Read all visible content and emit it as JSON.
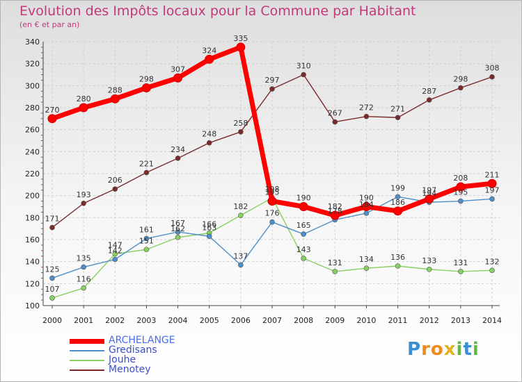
{
  "header": {
    "title": "Evolution des Impôts locaux pour la Commune par Habitant",
    "subtitle": "(en € et par an)"
  },
  "logo": {
    "text": "Proxiti",
    "letters": [
      "P",
      "r",
      "o",
      "x",
      "i",
      "t",
      "i"
    ],
    "colors": [
      "#3a8fd0",
      "#f08a1c",
      "#f08a1c",
      "#e0b21c",
      "#62b843",
      "#3a8fd0",
      "#62b843"
    ]
  },
  "chart_data": {
    "type": "line",
    "title": "Evolution des Impôts locaux pour la Commune par Habitant",
    "subtitle": "(en € et par an)",
    "xlabel": "",
    "ylabel": "",
    "x": [
      "2000",
      "2001",
      "2002",
      "2003",
      "2004",
      "2005",
      "2006",
      "2007",
      "2008",
      "2009",
      "2010",
      "2011",
      "2012",
      "2013",
      "2014"
    ],
    "ylim": [
      100,
      340
    ],
    "yticks": [
      100,
      120,
      140,
      160,
      180,
      200,
      220,
      240,
      260,
      280,
      300,
      320,
      340
    ],
    "yticks_label": [
      "100",
      "120",
      "140",
      "160",
      "180",
      "200",
      "220",
      "240",
      "260",
      "280",
      "300",
      "320",
      "340"
    ],
    "grid": true,
    "legend_position": "bottom-left",
    "series": [
      {
        "name": "ARCHELANGE",
        "color": "#ff0000",
        "values": [
          270,
          280,
          288,
          298,
          307,
          324,
          335,
          195,
          190,
          182,
          190,
          186,
          197,
          208,
          211
        ],
        "labels": [
          "270",
          "280",
          "288",
          "298",
          "307",
          "324",
          "335",
          "195",
          "190",
          "182",
          "190",
          "186",
          "197",
          "208",
          "211"
        ]
      },
      {
        "name": "Gredisans",
        "color": "#4f8fc8",
        "values": [
          125,
          135,
          142,
          161,
          167,
          163,
          137,
          176,
          165,
          178,
          184,
          199,
          194,
          195,
          197
        ],
        "labels": [
          "125",
          "135",
          "142",
          "161",
          "167",
          "163",
          "137",
          "176",
          "165",
          "178",
          "184",
          "199",
          "194",
          "195",
          "197"
        ]
      },
      {
        "name": "Jouhe",
        "color": "#88d060",
        "values": [
          107,
          116,
          147,
          151,
          162,
          166,
          182,
          198,
          143,
          131,
          134,
          136,
          133,
          131,
          132
        ],
        "labels": [
          "107",
          "116",
          "147",
          "151",
          "162",
          "166",
          "182",
          "198",
          "143",
          "131",
          "134",
          "136",
          "133",
          "131",
          "132"
        ]
      },
      {
        "name": "Menotey",
        "color": "#7a2a2a",
        "values": [
          171,
          193,
          206,
          221,
          234,
          248,
          258,
          297,
          310,
          267,
          272,
          271,
          287,
          298,
          308
        ],
        "labels": [
          "171",
          "193",
          "206",
          "221",
          "234",
          "248",
          "258",
          "297",
          "310",
          "267",
          "272",
          "271",
          "287",
          "298",
          "308"
        ]
      }
    ]
  }
}
